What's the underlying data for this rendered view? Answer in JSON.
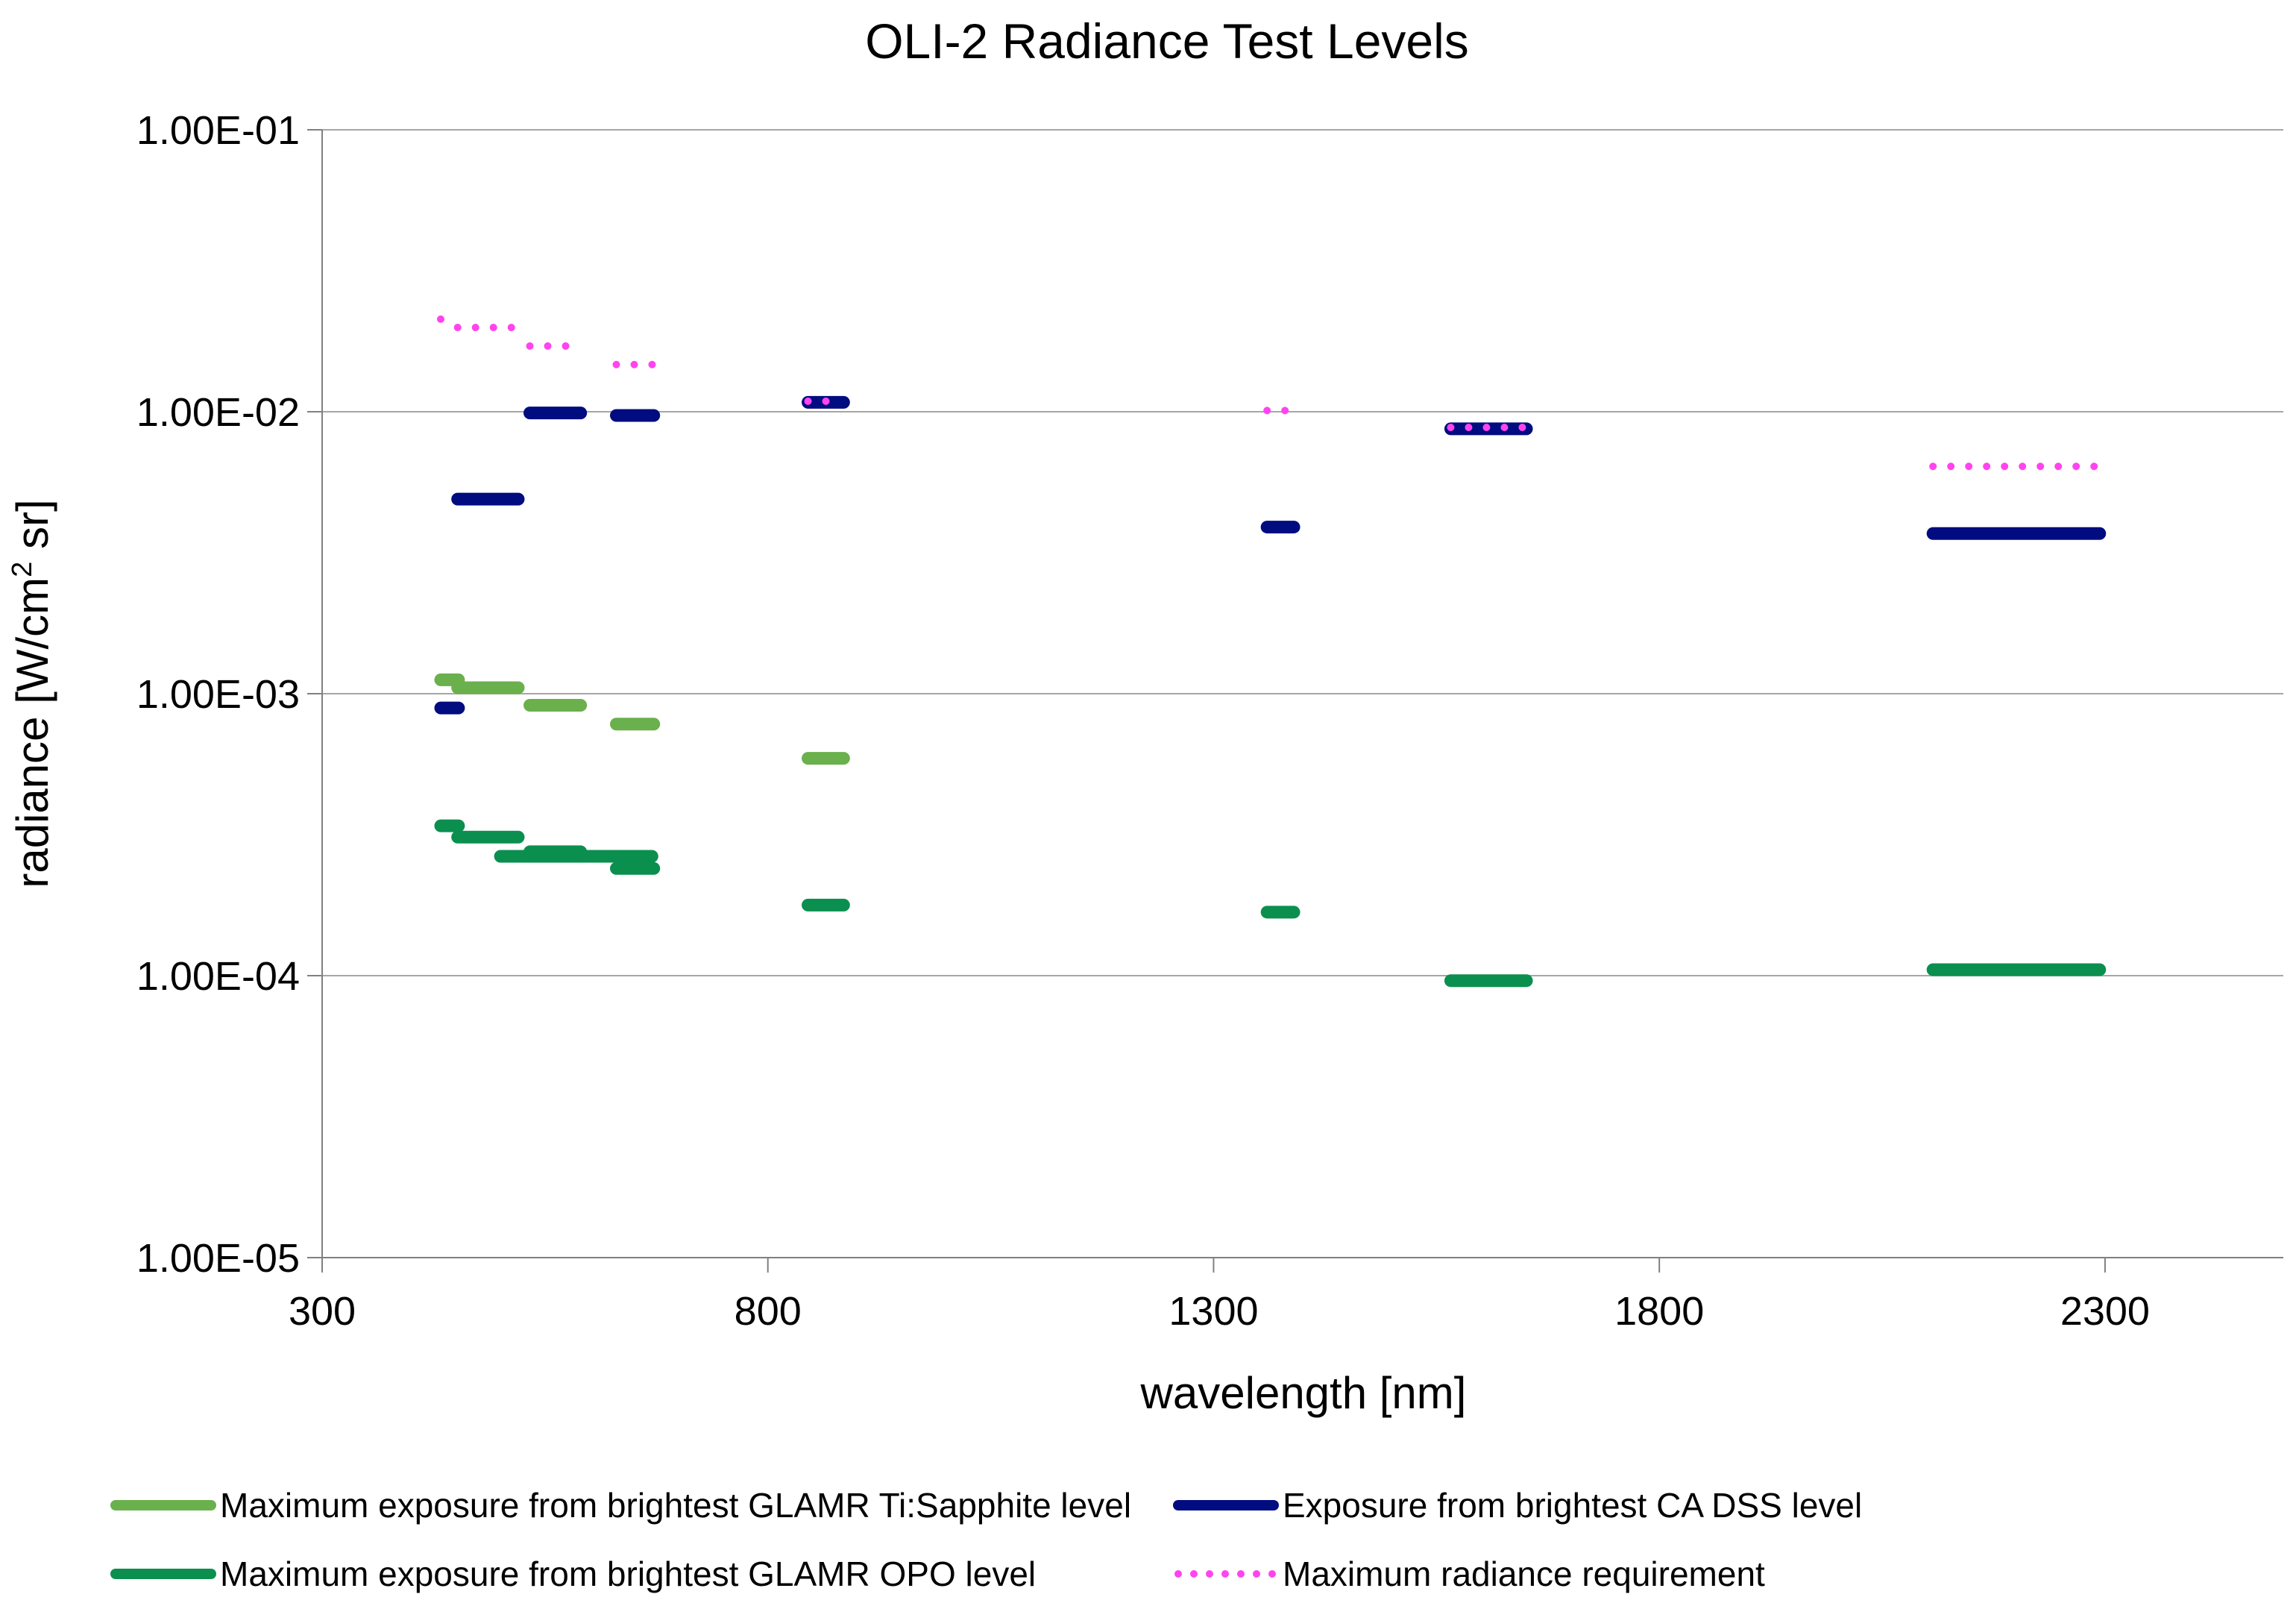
{
  "chart_data": {
    "type": "line",
    "title": "OLI-2 Radiance Test Levels",
    "xlabel": "wavelength [nm]",
    "ylabel": "radiance [W/cm² sr]",
    "ylabel_parts": {
      "pre": "radiance [W/cm",
      "sup": "2",
      "post": " sr]"
    },
    "xlim": [
      300,
      2500
    ],
    "ylim": [
      1e-05,
      0.1
    ],
    "y_scale": "log",
    "grid": "horizontal",
    "legend_position": "bottom",
    "x_ticks": [
      {
        "value": 300,
        "label": "300"
      },
      {
        "value": 800,
        "label": "800"
      },
      {
        "value": 1300,
        "label": "1300"
      },
      {
        "value": 1800,
        "label": "1800"
      },
      {
        "value": 2300,
        "label": "2300"
      }
    ],
    "y_ticks": [
      {
        "value": 0.1,
        "label": "1.00E-01"
      },
      {
        "value": 0.01,
        "label": "1.00E-02"
      },
      {
        "value": 0.001,
        "label": "1.00E-03"
      },
      {
        "value": 0.0001,
        "label": "1.00E-04"
      },
      {
        "value": 1e-05,
        "label": "1.00E-05"
      }
    ],
    "series": [
      {
        "id": "opo",
        "name": "Maximum exposure from brightest GLAMR OPO level",
        "color": "#0b8f4f",
        "style": "solid",
        "segments": [
          {
            "x": [
              433,
              453
            ],
            "y": 0.00034
          },
          {
            "x": [
              452,
              520
            ],
            "y": 0.00031
          },
          {
            "x": [
              500,
              670
            ],
            "y": 0.000265
          },
          {
            "x": [
              533,
              590
            ],
            "y": 0.000275
          },
          {
            "x": [
              630,
              672
            ],
            "y": 0.00024
          },
          {
            "x": [
              845,
              885
            ],
            "y": 0.000178
          },
          {
            "x": [
              1360,
              1390
            ],
            "y": 0.000168
          },
          {
            "x": [
              1566,
              1651
            ],
            "y": 9.6e-05
          },
          {
            "x": [
              2107,
              2294
            ],
            "y": 0.000105
          }
        ]
      },
      {
        "id": "tisapph",
        "name": "Maximum exposure from brightest GLAMR Ti:Sapphite level",
        "color": "#6ab04c",
        "style": "solid",
        "segments": [
          {
            "x": [
              433,
              453
            ],
            "y": 0.00112
          },
          {
            "x": [
              452,
              520
            ],
            "y": 0.00105
          },
          {
            "x": [
              533,
              590
            ],
            "y": 0.00091
          },
          {
            "x": [
              630,
              672
            ],
            "y": 0.00078
          },
          {
            "x": [
              845,
              885
            ],
            "y": 0.00059
          }
        ]
      },
      {
        "id": "cadss",
        "name": "Exposure from brightest CA DSS level",
        "color": "#000c80",
        "style": "solid",
        "segments": [
          {
            "x": [
              433,
              453
            ],
            "y": 0.00089
          },
          {
            "x": [
              452,
              520
            ],
            "y": 0.0049
          },
          {
            "x": [
              533,
              590
            ],
            "y": 0.0099
          },
          {
            "x": [
              630,
              672
            ],
            "y": 0.0097
          },
          {
            "x": [
              845,
              885
            ],
            "y": 0.0108
          },
          {
            "x": [
              1360,
              1390
            ],
            "y": 0.0039
          },
          {
            "x": [
              1566,
              1651
            ],
            "y": 0.0087
          },
          {
            "x": [
              2107,
              2294
            ],
            "y": 0.0037
          }
        ]
      },
      {
        "id": "maxrad",
        "name": "Maximum radiance requirement",
        "color": "#ff44ee",
        "style": "dotted",
        "segments": [
          {
            "x": [
              433,
              453
            ],
            "y": 0.0213
          },
          {
            "x": [
              452,
              520
            ],
            "y": 0.0199
          },
          {
            "x": [
              533,
              590
            ],
            "y": 0.0171
          },
          {
            "x": [
              630,
              672
            ],
            "y": 0.0147
          },
          {
            "x": [
              845,
              885
            ],
            "y": 0.0109
          },
          {
            "x": [
              1360,
              1390
            ],
            "y": 0.0101
          },
          {
            "x": [
              1566,
              1651
            ],
            "y": 0.0088
          },
          {
            "x": [
              2107,
              2294
            ],
            "y": 0.0064
          }
        ]
      }
    ],
    "legend": [
      {
        "series": "tisapph",
        "label": "Maximum exposure from brightest GLAMR Ti:Sapphite level"
      },
      {
        "series": "cadss",
        "label": "Exposure from brightest CA DSS level"
      },
      {
        "series": "opo",
        "label": "Maximum exposure from brightest GLAMR OPO level"
      },
      {
        "series": "maxrad",
        "label": "Maximum radiance requirement"
      }
    ]
  }
}
